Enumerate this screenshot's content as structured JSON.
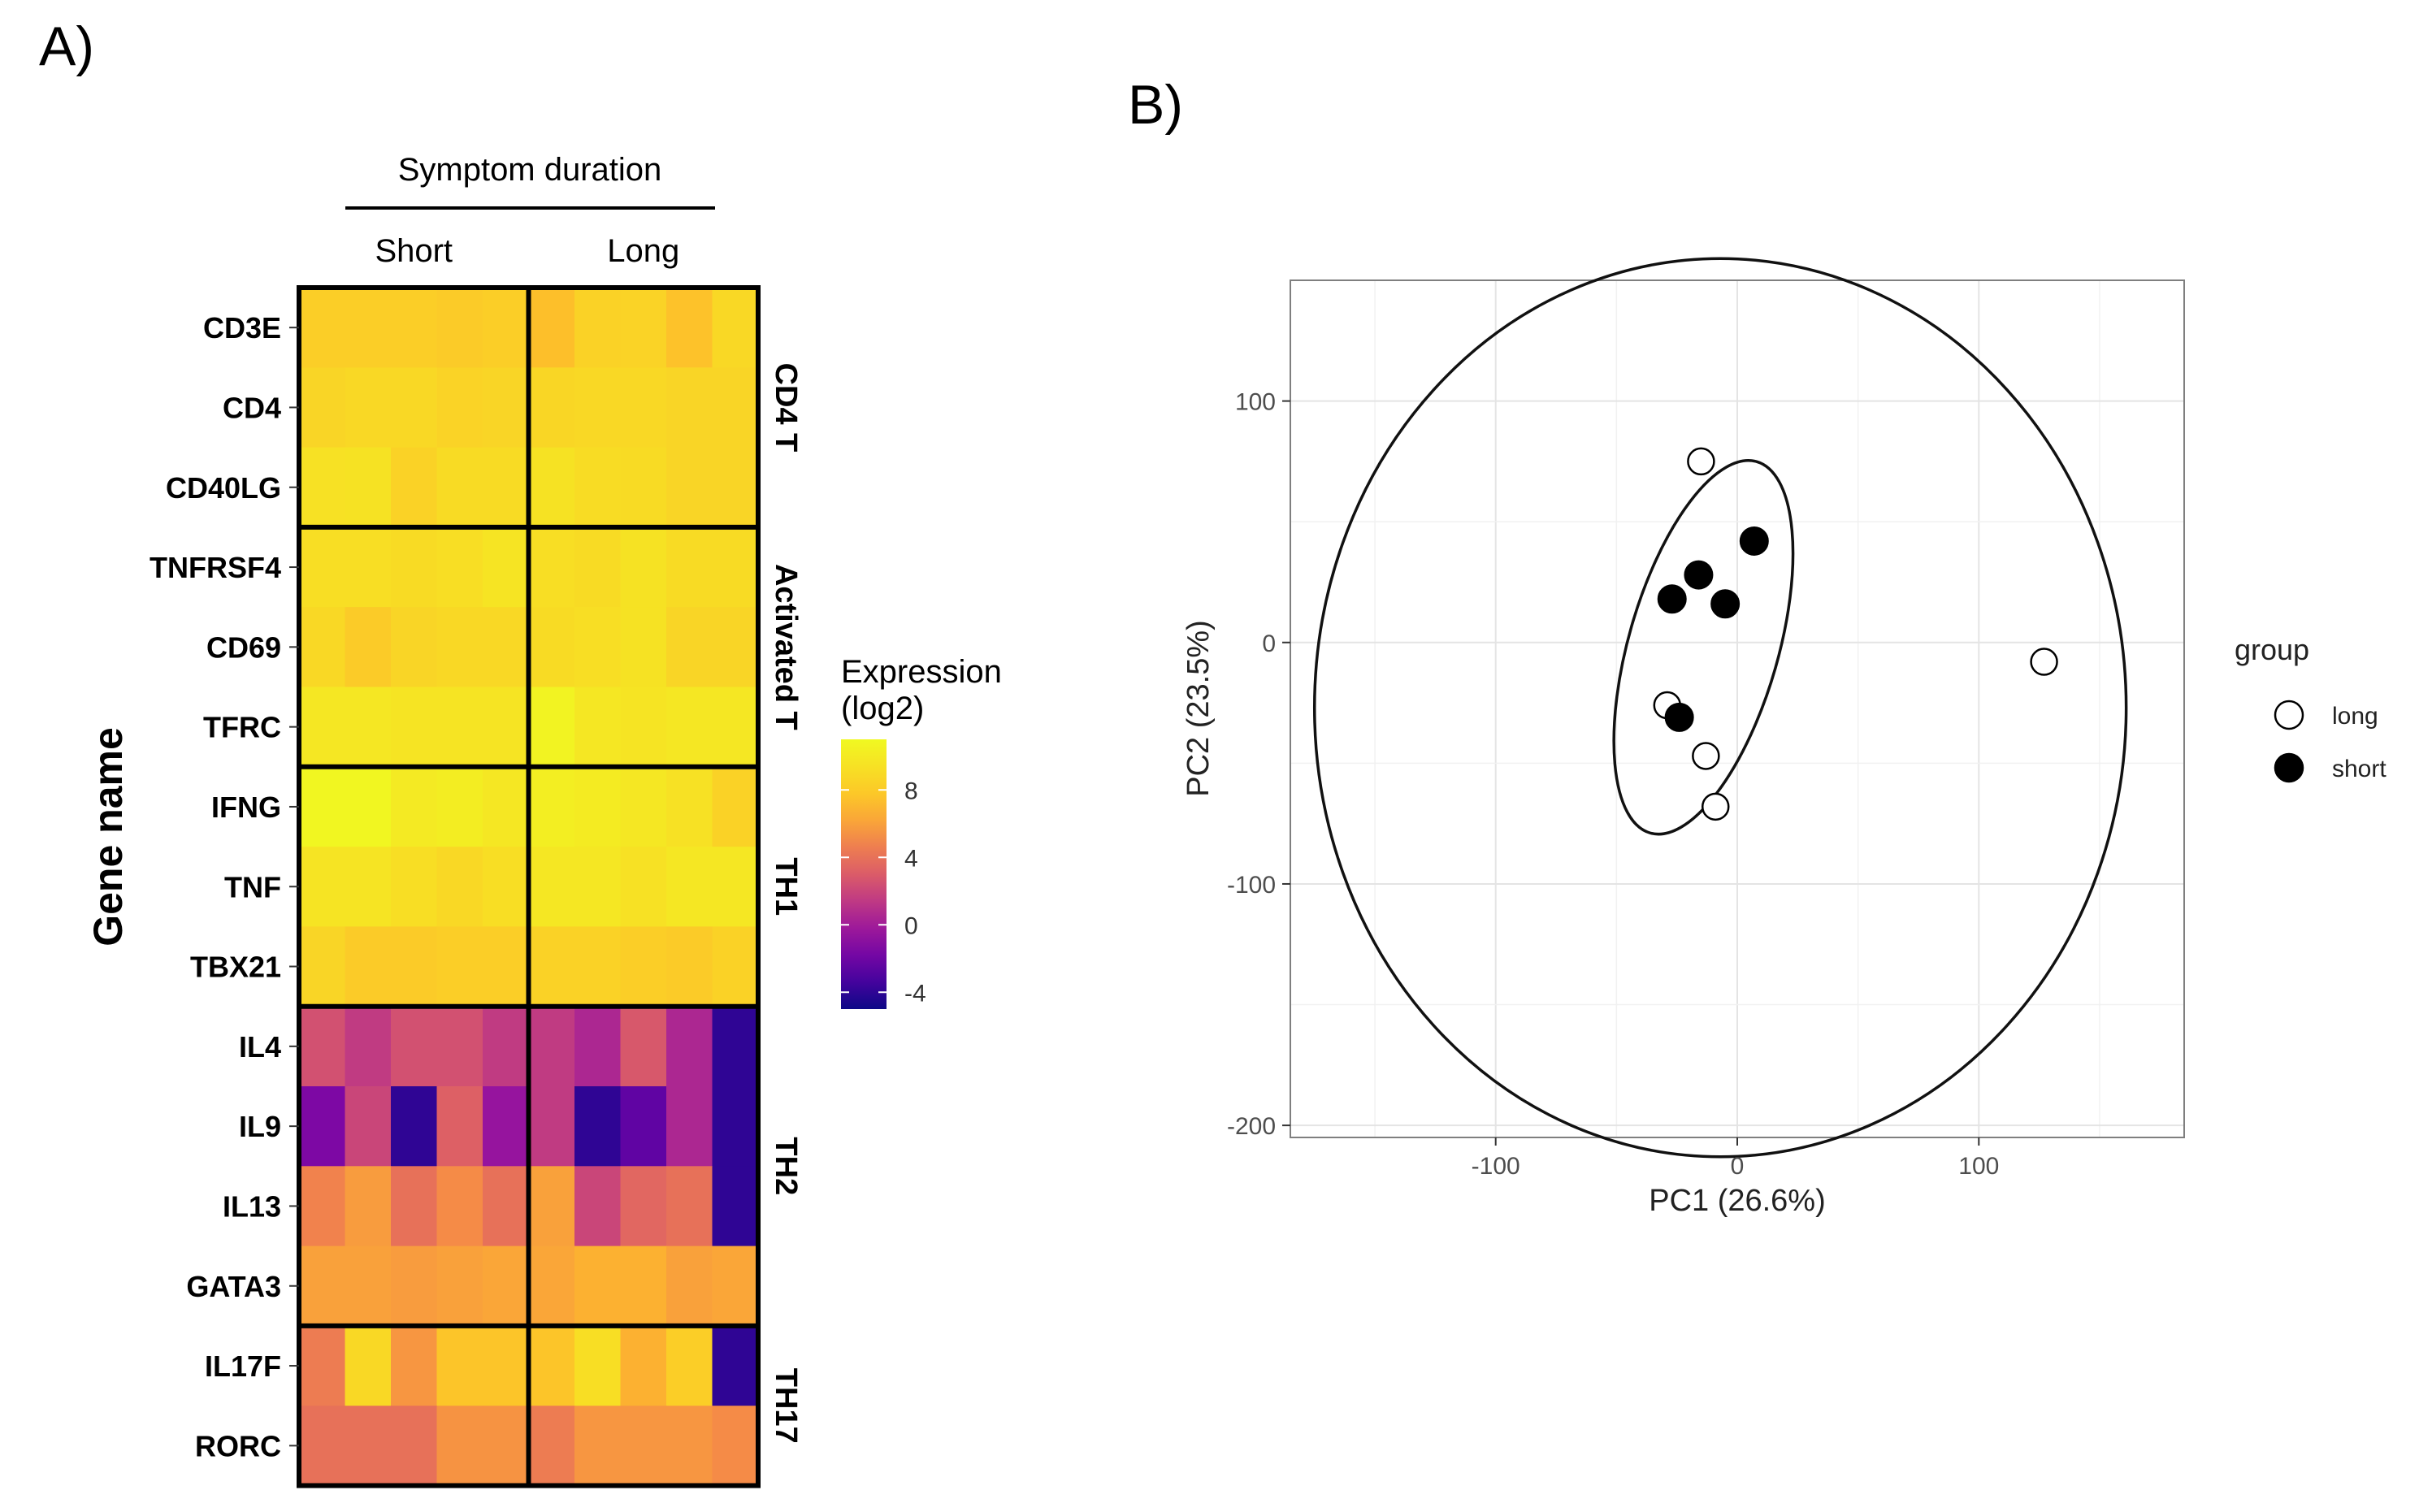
{
  "panels": {
    "a_label": "A)",
    "b_label": "B)"
  },
  "chart_data": [
    {
      "type": "heatmap",
      "title": "",
      "column_group_header": "Symptom duration",
      "column_groups": [
        {
          "label": "Short",
          "n_columns": 5
        },
        {
          "label": "Long",
          "n_columns": 5
        }
      ],
      "ylabel": "Gene name",
      "rows": [
        "CD3E",
        "CD4",
        "CD40LG",
        "TNFRSF4",
        "CD69",
        "TFRC",
        "IFNG",
        "TNF",
        "TBX21",
        "IL4",
        "IL9",
        "IL13",
        "GATA3",
        "IL17F",
        "RORC"
      ],
      "row_groups": [
        {
          "label": "CD4 T",
          "n_rows": 3
        },
        {
          "label": "Activated T",
          "n_rows": 3
        },
        {
          "label": "TH1",
          "n_rows": 3
        },
        {
          "label": "TH2",
          "n_rows": 4
        },
        {
          "label": "TH17",
          "n_rows": 2
        }
      ],
      "values": [
        [
          8.2,
          8.2,
          8.2,
          8.0,
          8.2,
          7.2,
          8.4,
          8.5,
          7.4,
          8.8
        ],
        [
          8.6,
          8.8,
          8.8,
          8.5,
          8.6,
          8.7,
          8.8,
          8.8,
          8.6,
          8.6
        ],
        [
          9.4,
          9.5,
          8.4,
          9.0,
          9.0,
          9.5,
          9.1,
          9.0,
          8.6,
          8.6
        ],
        [
          9.2,
          9.2,
          9.0,
          9.2,
          9.6,
          9.2,
          9.0,
          9.5,
          9.0,
          9.0
        ],
        [
          8.8,
          8.0,
          8.6,
          8.8,
          8.8,
          9.0,
          9.2,
          9.5,
          8.6,
          8.6
        ],
        [
          9.8,
          9.8,
          9.6,
          9.6,
          9.6,
          10.6,
          9.8,
          9.6,
          9.8,
          9.8
        ],
        [
          10.8,
          10.8,
          10.0,
          10.2,
          9.8,
          10.3,
          10.1,
          9.8,
          9.4,
          8.4
        ],
        [
          9.6,
          9.6,
          9.2,
          8.8,
          9.2,
          9.8,
          9.8,
          9.4,
          9.8,
          9.8
        ],
        [
          8.6,
          8.0,
          8.0,
          8.2,
          8.2,
          8.4,
          8.4,
          8.2,
          8.0,
          8.4
        ],
        [
          2.5,
          1.5,
          2.5,
          2.5,
          1.5,
          1.5,
          0.5,
          2.8,
          0.5,
          -4.0
        ],
        [
          -1.5,
          2.0,
          -4.0,
          3.2,
          -0.5,
          1.5,
          -4.0,
          -2.5,
          0.5,
          -4.0
        ],
        [
          4.8,
          5.8,
          4.0,
          5.2,
          4.0,
          6.0,
          2.0,
          3.5,
          4.0,
          -4.0
        ],
        [
          6.0,
          6.0,
          5.8,
          6.0,
          6.2,
          6.2,
          6.6,
          6.6,
          6.0,
          6.2
        ],
        [
          4.5,
          8.8,
          5.6,
          7.6,
          7.6,
          7.6,
          9.2,
          6.6,
          8.2,
          -4.0
        ],
        [
          4.0,
          4.0,
          4.0,
          5.5,
          5.5,
          4.5,
          5.6,
          5.6,
          5.6,
          5.2
        ]
      ],
      "colorbar": {
        "title_line1": "Expression",
        "title_line2": "(log2)",
        "min": -5,
        "max": 11,
        "ticks": [
          8,
          4,
          0,
          -4
        ],
        "tick_labels": [
          "8",
          "4",
          "0",
          "-4"
        ],
        "colormap": "plasma"
      }
    },
    {
      "type": "scatter",
      "title": "",
      "xlabel": "PC1 (26.6%)",
      "ylabel": "PC2 (23.5%)",
      "xlim": [
        -185,
        185
      ],
      "ylim": [
        -205,
        150
      ],
      "xticks": [
        -100,
        0,
        100
      ],
      "xtick_labels": [
        "-100",
        "0",
        "100"
      ],
      "yticks": [
        100,
        0,
        -100,
        -200
      ],
      "ytick_labels": [
        "100",
        "0",
        "-100",
        "-200"
      ],
      "grid": true,
      "legend": {
        "title": "group",
        "placement": "right"
      },
      "series": [
        {
          "name": "long",
          "marker": "open-circle",
          "color": "#000000",
          "points": [
            [
              -15,
              75
            ],
            [
              -29,
              -26
            ],
            [
              -13,
              -47
            ],
            [
              -9,
              -68
            ],
            [
              127,
              -8
            ]
          ]
        },
        {
          "name": "short",
          "marker": "filled-circle",
          "color": "#000000",
          "points": [
            [
              7,
              42
            ],
            [
              -16,
              28
            ],
            [
              -27,
              18
            ],
            [
              -5,
              16
            ],
            [
              -24,
              -31
            ]
          ]
        }
      ],
      "ellipses": [
        {
          "group": "inner",
          "center": [
            -14,
            -2
          ],
          "semi_axes": [
            31,
            80
          ],
          "rotation_deg": 16
        },
        {
          "group": "outer",
          "center": [
            -7,
            -27
          ],
          "semi_axes": [
            168,
            186
          ],
          "rotation_deg": 0
        }
      ]
    }
  ]
}
